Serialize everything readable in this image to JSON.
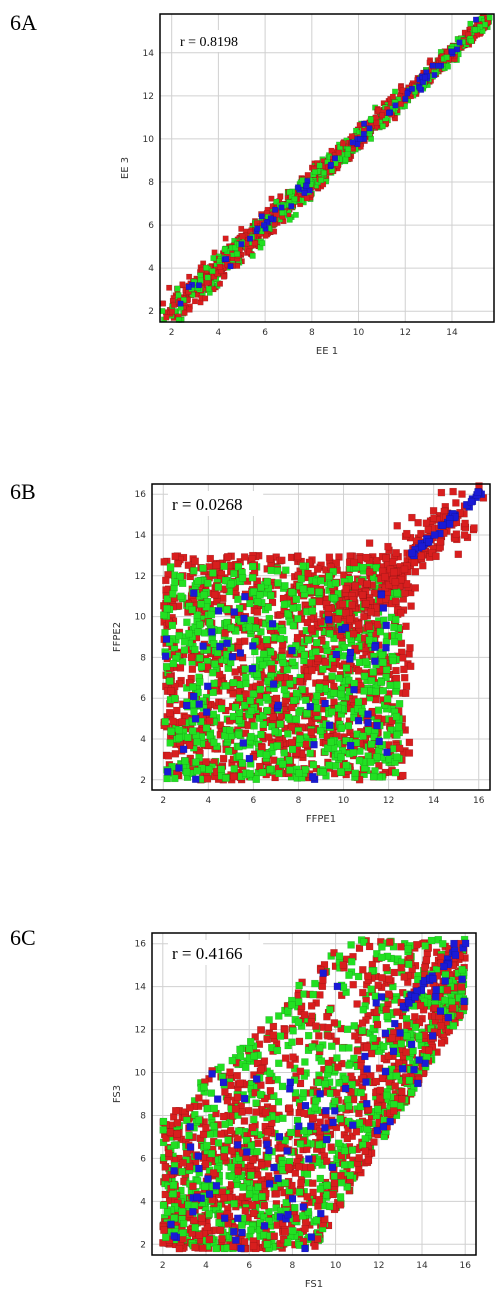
{
  "colors": {
    "red": "#d81e1e",
    "green": "#22e022",
    "blue": "#1a1ad6",
    "grid": "#d0d0d0",
    "frame": "#000000"
  },
  "chart_data": [
    {
      "type": "scatter",
      "panel_label": "6A",
      "annotation": "r = 0.8198",
      "xlabel": "EE 1",
      "ylabel": "EE 3",
      "xlim": [
        1.5,
        15.8
      ],
      "ylim": [
        1.5,
        15.8
      ],
      "xticks": [
        2,
        4,
        6,
        8,
        10,
        12,
        14
      ],
      "yticks": [
        2,
        4,
        6,
        8,
        10,
        12,
        14
      ],
      "grid": true,
      "series": [
        {
          "color": "red",
          "pattern": "diagonal",
          "count": 900,
          "spread_low": 0.9,
          "spread_high": 0.35
        },
        {
          "color": "green",
          "pattern": "diagonal",
          "count": 500,
          "spread_low": 0.9,
          "spread_high": 0.35
        },
        {
          "color": "blue",
          "pattern": "diagonal",
          "count": 70,
          "spread_low": 0.6,
          "spread_high": 0.3
        }
      ]
    },
    {
      "type": "scatter",
      "panel_label": "6B",
      "annotation": "r = 0.0268",
      "xlabel": "FFPE1",
      "ylabel": "FFPE2",
      "xlim": [
        1.5,
        16.5
      ],
      "ylim": [
        1.5,
        16.5
      ],
      "xticks": [
        2,
        4,
        6,
        8,
        10,
        12,
        14,
        16
      ],
      "yticks": [
        2,
        4,
        6,
        8,
        10,
        12,
        14,
        16
      ],
      "grid": true,
      "series": [
        {
          "color": "red",
          "pattern": "uniform-block",
          "count": 1100,
          "block": [
            2,
            13,
            2,
            13
          ]
        },
        {
          "color": "green",
          "pattern": "uniform-block",
          "count": 800,
          "block": [
            2,
            12.5,
            2,
            12.5
          ]
        },
        {
          "color": "red",
          "pattern": "upper-diagonal",
          "count": 250
        },
        {
          "color": "blue",
          "pattern": "uniform-block",
          "count": 60,
          "block": [
            2,
            12,
            2,
            12
          ]
        },
        {
          "color": "blue",
          "pattern": "tight-top",
          "count": 40
        }
      ]
    },
    {
      "type": "scatter",
      "panel_label": "6C",
      "annotation": "r = 0.4166",
      "xlabel": "FS1",
      "ylabel": "FS3",
      "xlim": [
        1.5,
        16.5
      ],
      "ylim": [
        1.5,
        16.5
      ],
      "xticks": [
        2,
        4,
        6,
        8,
        10,
        12,
        14,
        16
      ],
      "yticks": [
        2,
        4,
        6,
        8,
        10,
        12,
        14,
        16
      ],
      "grid": true,
      "series": [
        {
          "color": "red",
          "pattern": "wedge",
          "count": 1100
        },
        {
          "color": "green",
          "pattern": "wedge",
          "count": 800
        },
        {
          "color": "blue",
          "pattern": "wedge",
          "count": 90
        },
        {
          "color": "blue",
          "pattern": "tight-top",
          "count": 30
        }
      ]
    }
  ]
}
